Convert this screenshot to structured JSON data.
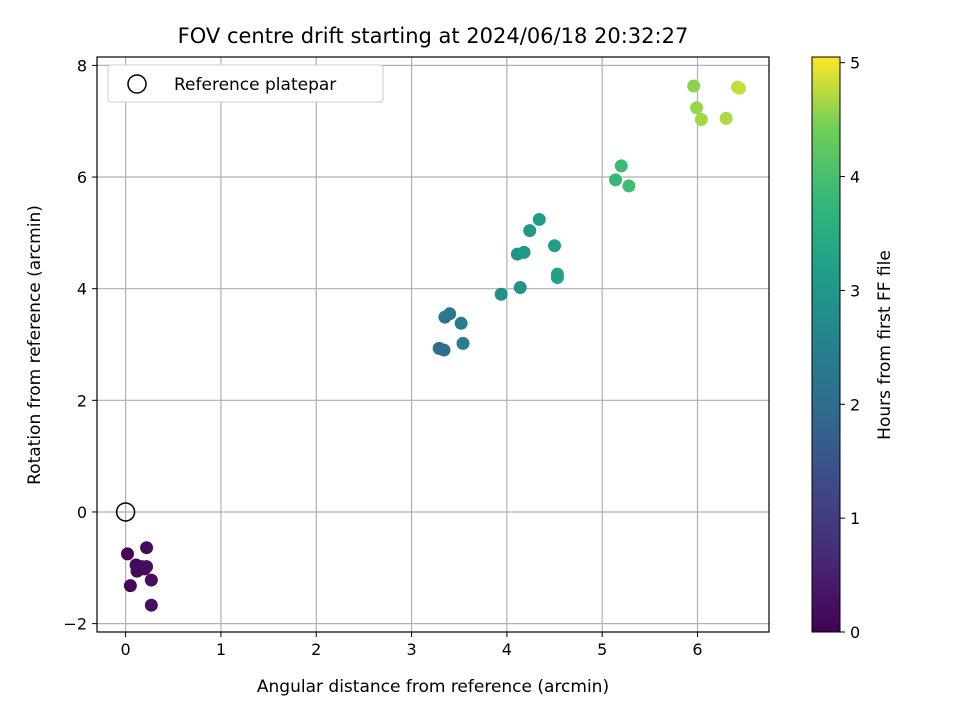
{
  "chart_data": {
    "type": "scatter",
    "title": "FOV centre drift starting at 2024/06/18 20:32:27",
    "xlabel": "Angular distance from reference (arcmin)",
    "ylabel": "Rotation from reference (arcmin)",
    "xlim": [
      -0.3,
      6.75
    ],
    "ylim": [
      -2.15,
      8.15
    ],
    "xticks": [
      0,
      1,
      2,
      3,
      4,
      5,
      6
    ],
    "yticks": [
      -2,
      0,
      2,
      4,
      6,
      8
    ],
    "grid": true,
    "legend": {
      "placement": "top-left",
      "entries": [
        "Reference platepar"
      ]
    },
    "reference_point": {
      "x": 0,
      "y": 0,
      "label": "Reference platepar"
    },
    "colormap": "viridis",
    "colorbar": {
      "label": "Hours from first FF file",
      "range": [
        0,
        5.05
      ],
      "ticks": [
        0,
        1,
        2,
        3,
        4,
        5
      ]
    },
    "points": [
      {
        "x": 0.02,
        "y": -0.75,
        "c": 0.05
      },
      {
        "x": 0.05,
        "y": -1.32,
        "c": 0.08
      },
      {
        "x": 0.11,
        "y": -0.95,
        "c": 0.1
      },
      {
        "x": 0.12,
        "y": -1.06,
        "c": 0.12
      },
      {
        "x": 0.17,
        "y": -0.98,
        "c": 0.14
      },
      {
        "x": 0.2,
        "y": -1.02,
        "c": 0.16
      },
      {
        "x": 0.22,
        "y": -0.64,
        "c": 0.18
      },
      {
        "x": 0.22,
        "y": -0.98,
        "c": 0.2
      },
      {
        "x": 0.27,
        "y": -1.22,
        "c": 0.22
      },
      {
        "x": 0.27,
        "y": -1.67,
        "c": 0.25
      },
      {
        "x": 3.29,
        "y": 2.93,
        "c": 2.05
      },
      {
        "x": 3.34,
        "y": 2.9,
        "c": 2.1
      },
      {
        "x": 3.35,
        "y": 3.49,
        "c": 2.2
      },
      {
        "x": 3.4,
        "y": 3.55,
        "c": 2.3
      },
      {
        "x": 3.52,
        "y": 3.38,
        "c": 2.35
      },
      {
        "x": 3.54,
        "y": 3.02,
        "c": 2.4
      },
      {
        "x": 3.94,
        "y": 3.9,
        "c": 2.85
      },
      {
        "x": 4.11,
        "y": 4.62,
        "c": 2.95
      },
      {
        "x": 4.14,
        "y": 4.02,
        "c": 2.9
      },
      {
        "x": 4.18,
        "y": 4.65,
        "c": 3.0
      },
      {
        "x": 4.24,
        "y": 5.04,
        "c": 3.05
      },
      {
        "x": 4.34,
        "y": 5.24,
        "c": 3.1
      },
      {
        "x": 4.5,
        "y": 4.77,
        "c": 3.15
      },
      {
        "x": 4.53,
        "y": 4.26,
        "c": 3.2
      },
      {
        "x": 4.53,
        "y": 4.2,
        "c": 3.22
      },
      {
        "x": 5.14,
        "y": 5.95,
        "c": 3.8
      },
      {
        "x": 5.2,
        "y": 6.2,
        "c": 3.85
      },
      {
        "x": 5.28,
        "y": 5.84,
        "c": 3.9
      },
      {
        "x": 5.96,
        "y": 7.63,
        "c": 4.55
      },
      {
        "x": 5.99,
        "y": 7.24,
        "c": 4.6
      },
      {
        "x": 6.04,
        "y": 7.03,
        "c": 4.65
      },
      {
        "x": 6.3,
        "y": 7.05,
        "c": 4.7
      },
      {
        "x": 6.42,
        "y": 7.61,
        "c": 4.75
      },
      {
        "x": 6.44,
        "y": 7.59,
        "c": 4.8
      }
    ]
  }
}
